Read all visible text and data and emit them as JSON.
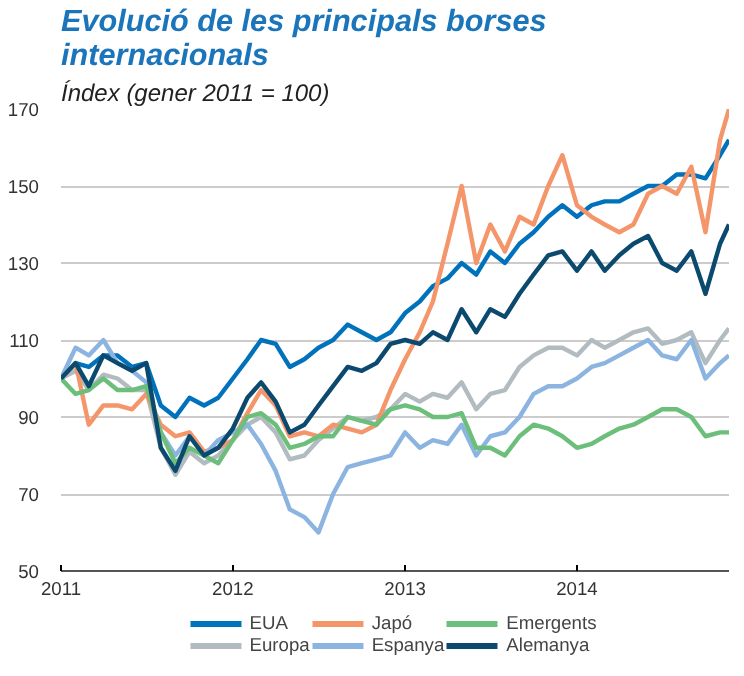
{
  "chart_data": {
    "type": "line",
    "title": "Evolució de les principals borses internacionals",
    "subtitle": "Índex (gener 2011 = 100)",
    "x": [
      "2011-01-01",
      "2011-02-01",
      "2011-03-01",
      "2011-04-01",
      "2011-05-01",
      "2011-06-01",
      "2011-07-01",
      "2011-08-01",
      "2011-09-01",
      "2011-10-01",
      "2011-11-01",
      "2011-12-01",
      "2012-01-01",
      "2012-02-01",
      "2012-03-01",
      "2012-04-01",
      "2012-05-01",
      "2012-06-01",
      "2012-07-01",
      "2012-08-01",
      "2012-09-01",
      "2012-10-01",
      "2012-11-01",
      "2012-12-01",
      "2013-01-01",
      "2013-02-01",
      "2013-03-01",
      "2013-04-01",
      "2013-05-01",
      "2013-06-01",
      "2013-07-01",
      "2013-08-01",
      "2013-09-01",
      "2013-10-01",
      "2013-11-01",
      "2013-12-01",
      "2014-01-01",
      "2014-02-01",
      "2014-03-01",
      "2014-04-01",
      "2014-05-01",
      "2014-06-01",
      "2014-07-01",
      "2014-08-01",
      "2014-09-01",
      "2014-10-01",
      "2014-11-01",
      "2014-11-20"
    ],
    "series": [
      {
        "name": "EUA",
        "color": "#0072bc",
        "values": [
          100,
          104,
          103,
          106,
          106,
          103,
          104,
          93,
          90,
          95,
          93,
          95,
          100,
          105,
          110,
          109,
          103,
          105,
          108,
          110,
          114,
          112,
          110,
          112,
          117,
          120,
          124,
          126,
          130,
          127,
          133,
          130,
          135,
          138,
          142,
          145,
          142,
          145,
          146,
          146,
          148,
          150,
          150,
          153,
          153,
          152,
          158,
          162
        ]
      },
      {
        "name": "Europa",
        "color": "#b2bcc0",
        "values": [
          100,
          102,
          97,
          101,
          100,
          97,
          97,
          82,
          75,
          81,
          78,
          80,
          84,
          88,
          90,
          86,
          79,
          80,
          84,
          87,
          90,
          89,
          90,
          92,
          96,
          94,
          96,
          95,
          99,
          92,
          96,
          97,
          103,
          106,
          108,
          108,
          106,
          110,
          108,
          110,
          112,
          113,
          109,
          110,
          112,
          104,
          110,
          113
        ]
      },
      {
        "name": "Japó",
        "color": "#f4956a",
        "values": [
          100,
          104,
          88,
          93,
          93,
          92,
          96,
          88,
          85,
          86,
          81,
          82,
          84,
          91,
          97,
          93,
          85,
          86,
          85,
          88,
          87,
          86,
          88,
          97,
          105,
          112,
          120,
          135,
          150,
          130,
          140,
          133,
          142,
          140,
          150,
          158,
          145,
          142,
          140,
          138,
          140,
          148,
          150,
          148,
          155,
          138,
          162,
          170
        ]
      },
      {
        "name": "Espanya",
        "color": "#8cb4e0",
        "values": [
          100,
          108,
          106,
          110,
          104,
          102,
          99,
          86,
          80,
          85,
          80,
          84,
          86,
          88,
          83,
          76,
          66,
          64,
          60,
          70,
          77,
          78,
          79,
          80,
          86,
          82,
          84,
          83,
          88,
          80,
          85,
          86,
          90,
          96,
          98,
          98,
          100,
          103,
          104,
          106,
          108,
          110,
          106,
          105,
          110,
          100,
          104,
          106
        ]
      },
      {
        "name": "Emergents",
        "color": "#6cbf7a",
        "values": [
          100,
          96,
          97,
          100,
          97,
          97,
          98,
          86,
          78,
          82,
          80,
          78,
          84,
          90,
          91,
          88,
          82,
          83,
          85,
          85,
          90,
          89,
          88,
          92,
          93,
          92,
          90,
          90,
          91,
          82,
          82,
          80,
          85,
          88,
          87,
          85,
          82,
          83,
          85,
          87,
          88,
          90,
          92,
          92,
          90,
          85,
          86,
          86
        ]
      },
      {
        "name": "Alemanya",
        "color": "#0b4a6e",
        "values": [
          100,
          104,
          98,
          106,
          104,
          102,
          104,
          82,
          76,
          85,
          80,
          82,
          87,
          95,
          99,
          94,
          86,
          88,
          93,
          98,
          103,
          102,
          104,
          109,
          110,
          109,
          112,
          110,
          118,
          112,
          118,
          116,
          122,
          127,
          132,
          133,
          128,
          133,
          128,
          132,
          135,
          137,
          130,
          128,
          133,
          122,
          135,
          140
        ]
      }
    ],
    "xlim": [
      "2011-01-01",
      "2014-11-20"
    ],
    "xticks": [
      {
        "value": "2011-01-01",
        "label": "2011"
      },
      {
        "value": "2012-01-01",
        "label": "2012"
      },
      {
        "value": "2013-01-01",
        "label": "2013"
      },
      {
        "value": "2014-01-01",
        "label": "2014"
      }
    ],
    "ylim": [
      50,
      170
    ],
    "yticks": [
      50,
      70,
      90,
      110,
      130,
      150,
      170
    ],
    "grid": "y",
    "legend": "bottom",
    "line_style": "solid"
  }
}
